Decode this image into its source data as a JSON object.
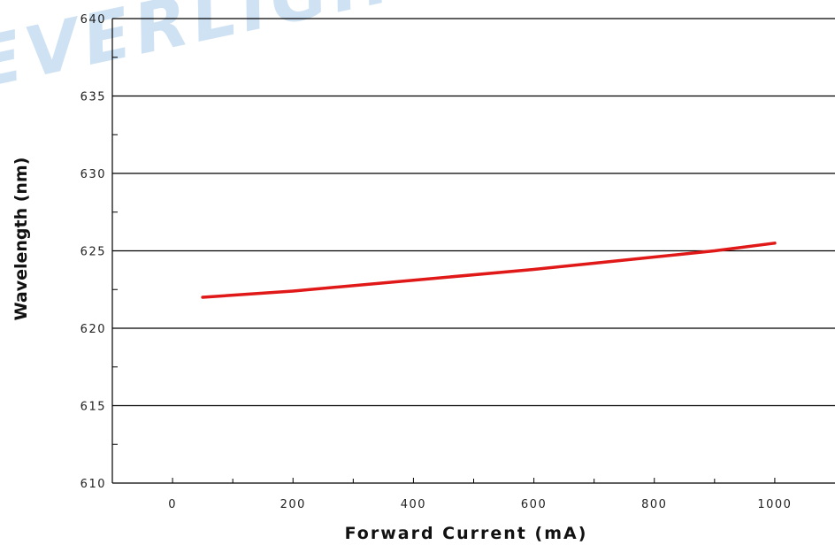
{
  "chart_data": {
    "type": "line",
    "title": "",
    "xlabel": "Forward Current (mA)",
    "ylabel": "Wavelength (nm)",
    "xlim": [
      -100,
      1100
    ],
    "ylim": [
      610,
      640
    ],
    "x_ticks": [
      "0",
      "200",
      "400",
      "600",
      "800",
      "1000"
    ],
    "y_ticks": [
      "610",
      "615",
      "620",
      "625",
      "630",
      "635",
      "640"
    ],
    "grid": "horizontal",
    "legend": "none",
    "series": [
      {
        "color": "#e01818",
        "x": [
          50,
          200,
          400,
          600,
          700,
          800,
          900,
          1000
        ],
        "y": [
          622.0,
          622.4,
          623.1,
          623.8,
          624.2,
          624.6,
          625.0,
          625.5
        ]
      }
    ]
  },
  "watermark": {
    "text": "EVERLIGHT",
    "color": "#cfe2f3"
  }
}
